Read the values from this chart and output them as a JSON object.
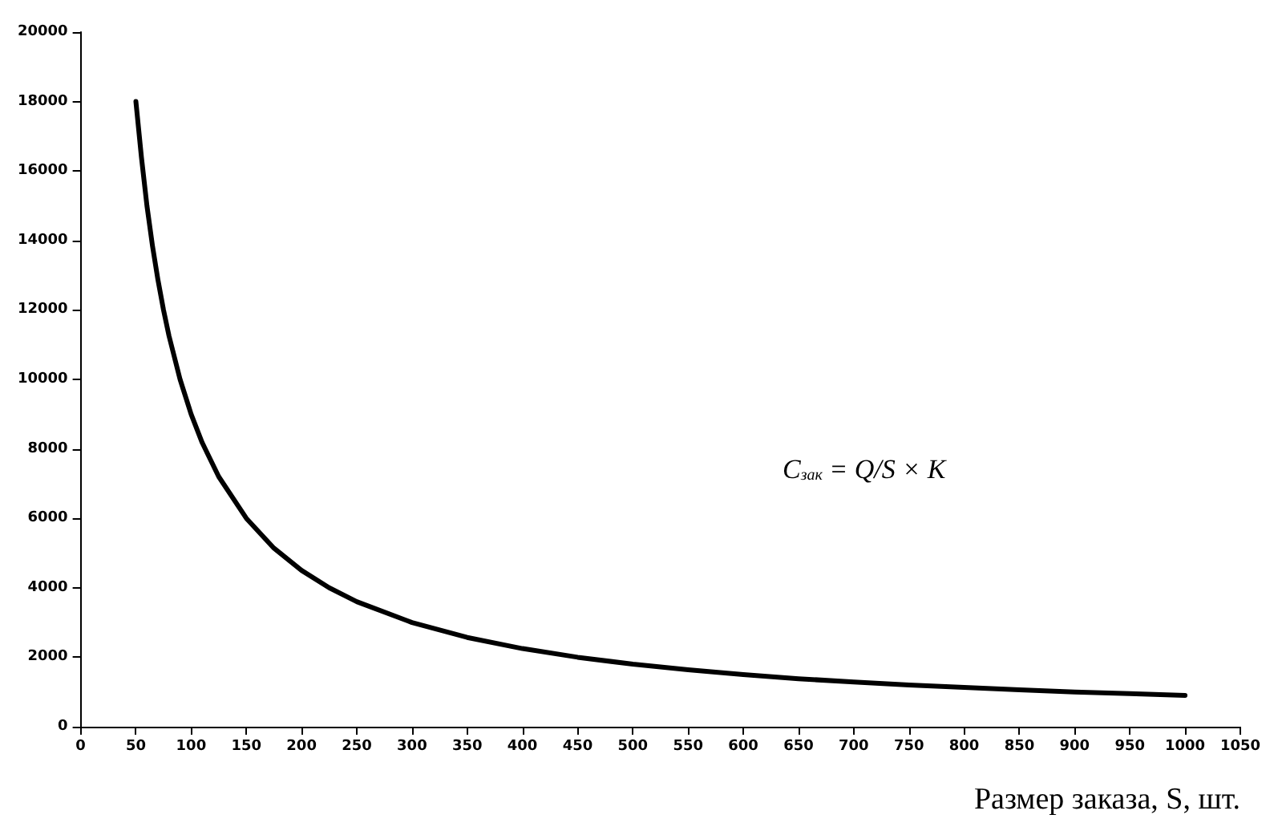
{
  "chart_data": {
    "type": "line",
    "xlabel": "Размер заказа, S, шт.",
    "annotations": [
      "C$_{зак}$ = Q/S × K"
    ],
    "x": [
      50,
      55,
      60,
      65,
      70,
      75,
      80,
      90,
      100,
      110,
      125,
      150,
      175,
      200,
      225,
      250,
      300,
      350,
      400,
      450,
      500,
      550,
      600,
      650,
      700,
      750,
      800,
      850,
      900,
      950,
      1000
    ],
    "series": [
      {
        "color": "#000000",
        "values": [
          18000,
          16400,
          15000,
          13850,
          12860,
          12000,
          11250,
          10000,
          9000,
          8180,
          7200,
          6000,
          5140,
          4500,
          4000,
          3600,
          3000,
          2570,
          2250,
          2000,
          1800,
          1640,
          1500,
          1380,
          1290,
          1200,
          1130,
          1060,
          1000,
          950,
          900
        ]
      }
    ],
    "xlim": [
      0,
      1050
    ],
    "xticks": [
      0,
      50,
      100,
      150,
      200,
      250,
      300,
      350,
      400,
      450,
      500,
      550,
      600,
      650,
      700,
      750,
      800,
      850,
      900,
      950,
      1000,
      1050
    ],
    "ylim": [
      0,
      20000
    ],
    "yticks": [
      0,
      2000,
      4000,
      6000,
      8000,
      10000,
      12000,
      14000,
      16000,
      18000,
      20000
    ],
    "grid": false,
    "marker": "none",
    "line_style": "solid"
  }
}
